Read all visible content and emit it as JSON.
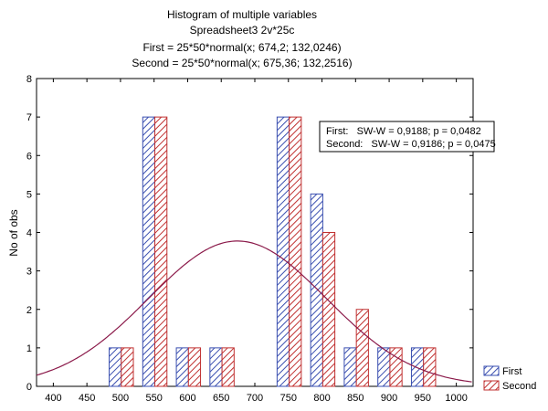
{
  "chart_data": {
    "type": "bar",
    "title": "Histogram of multiple variables",
    "subtitle": "Spreadsheet3 2v*25c",
    "fit_lines": [
      "First = 25*50*normal(x; 674,2; 132,0246)",
      "Second = 25*50*normal(x; 675,36; 132,2516)"
    ],
    "ylabel": "No of obs",
    "xlabel": "",
    "xlim": [
      375,
      1025
    ],
    "ylim": [
      0,
      8
    ],
    "x_ticks": [
      "400",
      "450",
      "500",
      "550",
      "600",
      "650",
      "700",
      "750",
      "800",
      "850",
      "900",
      "950",
      "1000"
    ],
    "y_ticks": [
      "0",
      "1",
      "2",
      "3",
      "4",
      "5",
      "6",
      "7",
      "8"
    ],
    "bin_width": 50,
    "bin_centers": [
      500,
      550,
      600,
      650,
      700,
      750,
      800,
      850,
      900,
      950,
      1000
    ],
    "series": [
      {
        "name": "First",
        "color": "#3a4fb0",
        "values": [
          1,
          7,
          1,
          1,
          0,
          7,
          5,
          1,
          1,
          1,
          0
        ]
      },
      {
        "name": "Second",
        "color": "#c03030",
        "values": [
          1,
          7,
          1,
          1,
          0,
          7,
          4,
          2,
          1,
          1,
          0
        ]
      }
    ],
    "normal_curve": {
      "mean": 674.2,
      "sd": 132.0246,
      "n": 25,
      "bin": 50,
      "color": "#8b1a4a"
    },
    "stats_box": [
      "First:   SW-W = 0,9188; p = 0,0482",
      "Second:   SW-W = 0,9186; p = 0,0475"
    ],
    "legend": [
      "First",
      "Second"
    ],
    "legend_position": "bottom-right",
    "grid": false
  }
}
